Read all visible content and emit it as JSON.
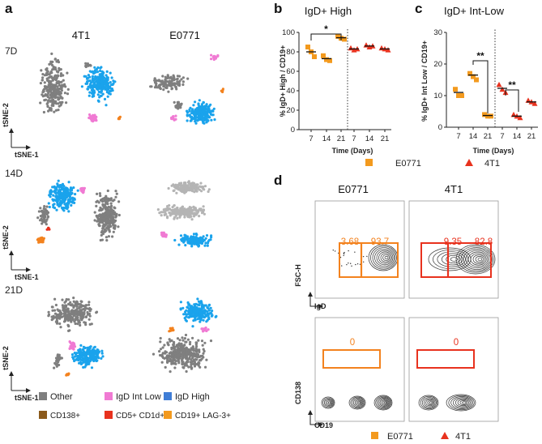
{
  "panel_a": {
    "letter": "a",
    "col_titles": [
      "4T1",
      "E0771"
    ],
    "row_labels": [
      "7D",
      "14D",
      "21D"
    ],
    "x_label": "tSNE-1",
    "y_label": "tSNE-2",
    "legend": [
      {
        "label": "Other",
        "color": "#7f7f7f"
      },
      {
        "label": "IgD Int Low",
        "color": "#f07ad3"
      },
      {
        "label": "IgD High",
        "color": "#3f7dd6"
      },
      {
        "label": "CD138+",
        "color": "#8b5a1b"
      },
      {
        "label": "CD5+ CD1d+",
        "color": "#e8321e"
      },
      {
        "label": "CD19+ LAG-3+",
        "color": "#f39a1e"
      }
    ],
    "colors": {
      "grey": "#7f7f7f",
      "lightgrey": "#b4b4b4",
      "blue": "#1aa3ec",
      "pink": "#f07ad3",
      "orange": "#f3821e",
      "red": "#e8321e",
      "brown": "#8b5a1b",
      "navy": "#3f7dd6"
    }
  },
  "chart_data": [
    {
      "type": "scatter",
      "panel": "b",
      "title": "IgD+ High",
      "ylabel": "% IgD+ High / CD19+",
      "xlabel": "Time (Days)",
      "ylim": [
        0,
        100
      ],
      "yticks": [
        0,
        20,
        40,
        60,
        80,
        100
      ],
      "categories": [
        "7",
        "14",
        "21",
        "7",
        "14",
        "21"
      ],
      "series": [
        {
          "name": "E0771",
          "marker": "square",
          "color": "#f39a1e",
          "groups": [
            {
              "x": "7",
              "values": [
                85,
                80,
                75
              ],
              "mean": 80
            },
            {
              "x": "14",
              "values": [
                76,
                72,
                71
              ],
              "mean": 73
            },
            {
              "x": "21",
              "values": [
                96,
                94,
                93
              ],
              "mean": 94.5
            }
          ]
        },
        {
          "name": "4T1",
          "marker": "triangle",
          "color": "#e8321e",
          "groups": [
            {
              "x": "7",
              "values": [
                84,
                82,
                83
              ],
              "mean": 83
            },
            {
              "x": "14",
              "values": [
                87,
                85,
                86
              ],
              "mean": 86
            },
            {
              "x": "21",
              "values": [
                84,
                83,
                82
              ],
              "mean": 83
            }
          ]
        }
      ],
      "significance": [
        {
          "from": "7",
          "to": "21",
          "label": "*"
        }
      ]
    },
    {
      "type": "scatter",
      "panel": "c",
      "title": "IgD+ Int-Low",
      "ylabel": "% IgD+ Int Low / CD19+",
      "xlabel": "Time (Days)",
      "ylim": [
        0,
        30
      ],
      "yticks": [
        0,
        10,
        20,
        30
      ],
      "categories": [
        "7",
        "14",
        "21",
        "7",
        "14",
        "21"
      ],
      "series": [
        {
          "name": "E0771",
          "marker": "square",
          "color": "#f39a1e",
          "groups": [
            {
              "x": "7",
              "values": [
                12,
                10,
                10
              ],
              "mean": 11
            },
            {
              "x": "14",
              "values": [
                17,
                16,
                15
              ],
              "mean": 16.5
            },
            {
              "x": "21",
              "values": [
                4,
                3.5,
                3.5
              ],
              "mean": 3.7
            }
          ]
        },
        {
          "name": "4T1",
          "marker": "triangle",
          "color": "#e8321e",
          "groups": [
            {
              "x": "7",
              "values": [
                13.5,
                12,
                11
              ],
              "mean": 12.3
            },
            {
              "x": "14",
              "values": [
                4,
                3.5,
                3
              ],
              "mean": 3.5
            },
            {
              "x": "21",
              "values": [
                8.5,
                8,
                7.5
              ],
              "mean": 8
            }
          ]
        }
      ],
      "significance": [
        {
          "from": "14",
          "to": "21",
          "label": "**",
          "series": "E0771"
        },
        {
          "from": "7",
          "to": "14",
          "label": "**",
          "series": "4T1"
        }
      ]
    }
  ],
  "legend_bc": [
    {
      "label": "E0771",
      "marker": "square",
      "color": "#f39a1e"
    },
    {
      "label": "4T1",
      "marker": "triangle",
      "color": "#e8321e"
    }
  ],
  "panel_d": {
    "letter": "d",
    "col_titles": [
      "E0771",
      "4T1"
    ],
    "top_y": "FSC-H",
    "top_x": "IgD",
    "bottom_y": "CD138",
    "bottom_x": "CD19",
    "gates_top": [
      {
        "left": "3.68",
        "right": "93.7",
        "color": "#f3821e"
      },
      {
        "left": "9.35",
        "right": "82.8",
        "color": "#e8321e"
      }
    ],
    "gates_bottom": [
      {
        "value": "0",
        "color": "#f3821e"
      },
      {
        "value": "0",
        "color": "#e8321e"
      }
    ],
    "legend": [
      {
        "label": "E0771",
        "marker": "square",
        "color": "#f39a1e"
      },
      {
        "label": "4T1",
        "marker": "triangle",
        "color": "#e8321e"
      }
    ]
  }
}
